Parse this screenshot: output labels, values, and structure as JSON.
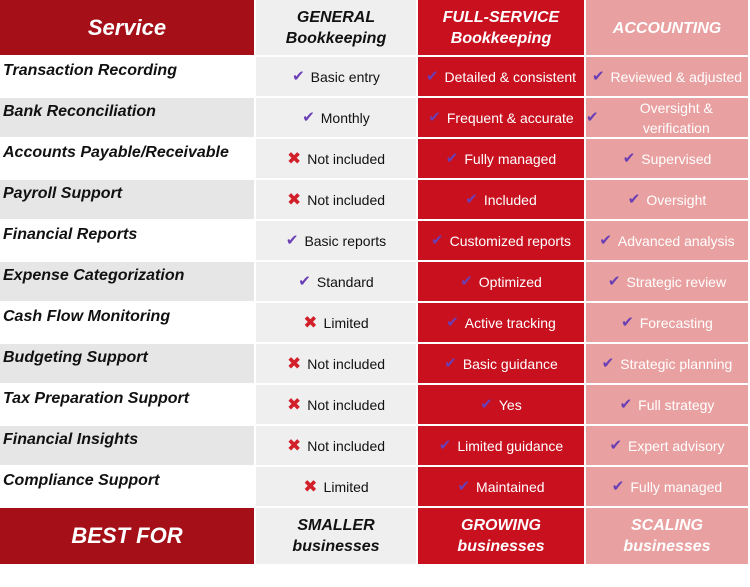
{
  "header": {
    "service": "Service",
    "general": {
      "line1": "GENERAL",
      "line2": "Bookkeeping"
    },
    "full": {
      "line1": "FULL-SERVICE",
      "line2": "Bookkeeping"
    },
    "accounting": {
      "line1": "ACCOUNTING",
      "line2": ""
    }
  },
  "icons": {
    "check": "✔",
    "cross": "✖"
  },
  "colors": {
    "dark_red": "#a40f18",
    "red": "#c8101f",
    "pink": "#e9a0a0",
    "check_purple": "#6a3fb5",
    "cross_red": "#d2202b"
  },
  "rows": [
    {
      "label": "Transaction Recording",
      "general": "Basic entry",
      "general_icon": "check",
      "full": "Detailed & consistent",
      "accounting": "Reviewed & adjusted"
    },
    {
      "label": "Bank Reconciliation",
      "general": "Monthly",
      "general_icon": "check",
      "full": "Frequent & accurate",
      "accounting": "Oversight & verification"
    },
    {
      "label": "Accounts Payable/Receivable",
      "general": "Not included",
      "general_icon": "cross",
      "full": "Fully managed",
      "accounting": "Supervised"
    },
    {
      "label": "Payroll Support",
      "general": "Not included",
      "general_icon": "cross",
      "full": "Included",
      "accounting": "Oversight"
    },
    {
      "label": "Financial Reports",
      "general": "Basic reports",
      "general_icon": "check",
      "full": "Customized reports",
      "accounting": "Advanced analysis"
    },
    {
      "label": "Expense Categorization",
      "general": "Standard",
      "general_icon": "check",
      "full": "Optimized",
      "accounting": "Strategic review"
    },
    {
      "label": "Cash Flow Monitoring",
      "general": "Limited",
      "general_icon": "cross",
      "full": "Active tracking",
      "accounting": "Forecasting"
    },
    {
      "label": "Budgeting Support",
      "general": "Not included",
      "general_icon": "cross",
      "full": "Basic guidance",
      "accounting": "Strategic planning"
    },
    {
      "label": "Tax Preparation Support",
      "general": "Not included",
      "general_icon": "cross",
      "full": "Yes",
      "accounting": "Full strategy"
    },
    {
      "label": "Financial Insights",
      "general": "Not included",
      "general_icon": "cross",
      "full": "Limited guidance",
      "accounting": "Expert advisory"
    },
    {
      "label": "Compliance Support",
      "general": "Limited",
      "general_icon": "cross",
      "full": "Maintained",
      "accounting": "Fully managed"
    }
  ],
  "best_for": {
    "label": "BEST FOR",
    "general": {
      "line1": "SMALLER",
      "line2": "businesses"
    },
    "full": {
      "line1": "GROWING",
      "line2": "businesses"
    },
    "accounting": {
      "line1": "SCALING",
      "line2": "businesses"
    }
  }
}
